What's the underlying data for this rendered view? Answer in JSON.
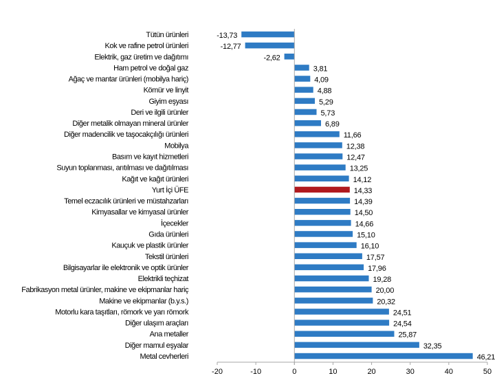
{
  "chart_data": {
    "type": "bar",
    "orientation": "horizontal",
    "title": "",
    "xlabel": "",
    "ylabel": "",
    "xlim": [
      -20,
      50
    ],
    "xticks": [
      -20,
      -10,
      0,
      10,
      20,
      30,
      40,
      50
    ],
    "xtick_labels": [
      "-20",
      "-10",
      "0",
      "10",
      "20",
      "30",
      "40",
      "50"
    ],
    "grid": false,
    "legend": "none",
    "colors": {
      "default": "#2E7BC4",
      "highlight": "#B0191E",
      "axis": "#A6A6A6"
    },
    "highlight_category": "Yurt İçi ÜFE",
    "categories": [
      "Tütün ürünleri",
      "Kok ve rafine petrol ürünleri",
      "Elektrik, gaz üretim ve dağıtımı",
      "Ham petrol ve doğal gaz",
      "Ağaç ve mantar ürünleri (mobilya hariç)",
      "Kömür ve linyit",
      "Giyim eşyası",
      "Deri ve ilgili ürünler",
      "Diğer metalik olmayan mineral ürünler",
      "Diğer madencilik ve taşocakçılığı ürünleri",
      "Mobilya",
      "Basım ve kayıt hizmetleri",
      "Suyun toplanması, arıtılması ve dağıtılması",
      "Kağıt ve kağıt ürünleri",
      "Yurt İçi ÜFE",
      "Temel eczacılık ürünleri ve müstahzarları",
      "Kimyasallar ve kimyasal ürünler",
      "İçecekler",
      "Gıda ürünleri",
      "Kauçuk ve plastik ürünler",
      "Tekstil ürünleri",
      "Bilgisayarlar ile elektronik ve optik ürünler",
      "Elektrikli teçhizat",
      "Fabrikasyon metal ürünler, makine ve ekipmanlar hariç",
      "Makine ve ekipmanlar (b.y.s.)",
      "Motorlu kara taşıtları, römork ve yarı römork",
      "Diğer ulaşım araçları",
      "Ana metaller",
      "Diğer mamul eşyalar",
      "Metal cevherleri"
    ],
    "values": [
      -13.73,
      -12.77,
      -2.62,
      3.81,
      4.09,
      4.88,
      5.29,
      5.73,
      6.89,
      11.66,
      12.38,
      12.47,
      13.25,
      14.12,
      14.33,
      14.39,
      14.5,
      14.66,
      15.1,
      16.1,
      17.57,
      17.96,
      19.28,
      20.0,
      20.32,
      24.51,
      24.54,
      25.87,
      32.35,
      46.21
    ],
    "value_labels": [
      "-13,73",
      "-12,77",
      "-2,62",
      "3,81",
      "4,09",
      "4,88",
      "5,29",
      "5,73",
      "6,89",
      "11,66",
      "12,38",
      "12,47",
      "13,25",
      "14,12",
      "14,33",
      "14,39",
      "14,50",
      "14,66",
      "15,10",
      "16,10",
      "17,57",
      "17,96",
      "19,28",
      "20,00",
      "20,32",
      "24,51",
      "24,54",
      "25,87",
      "32,35",
      "46,21"
    ]
  }
}
